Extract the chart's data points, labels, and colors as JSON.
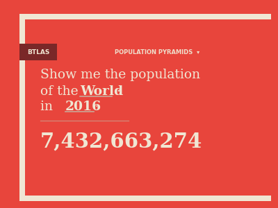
{
  "bg_color": "#e8453c",
  "card_bg": "#f0e6d3",
  "inner_bg": "#e8453c",
  "btlas_bg": "#7a2828",
  "btlas_text": "BTLAS",
  "btlas_text_color": "#f0e6d3",
  "nav_text": "POPULATION PYRAMIDS  ▾",
  "nav_text_color": "#f0e6d3",
  "line1": "Show me the population",
  "line2_prefix": "of the  ",
  "line2_bold": "World",
  "line2_suffix": " ·",
  "line3_prefix": "in  ",
  "line3_bold": "2016",
  "line3_suffix": "·",
  "stat": "7,432,663,274",
  "text_color": "#f0e6d3",
  "underline_color": "#c9a898",
  "separator_color": "#c9a898",
  "card_border_color": "#f0e6d3"
}
